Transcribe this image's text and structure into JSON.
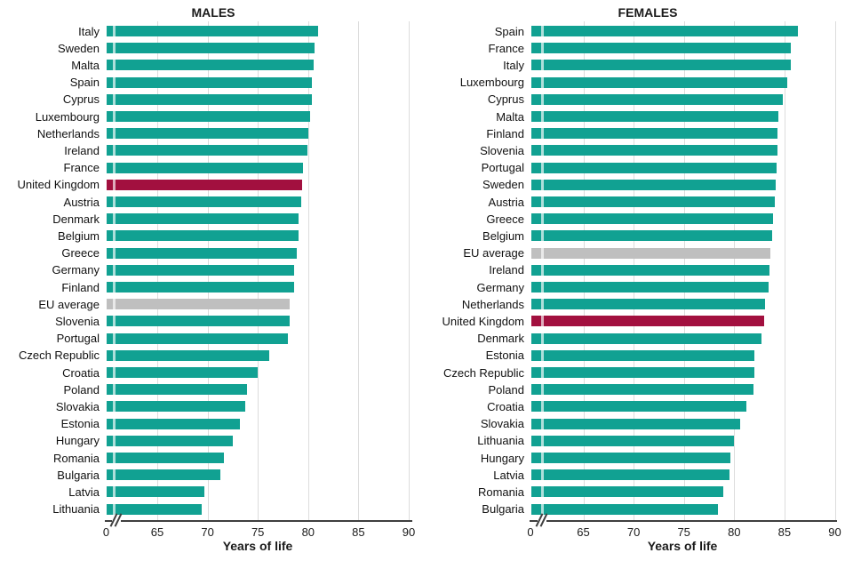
{
  "colors": {
    "bar": "#11A192",
    "highlight": "#A2103F",
    "average": "#BFBFBF",
    "gridline": "#DCDCDC",
    "axis": "#3F3F3F",
    "text": "#1A1A1A"
  },
  "chart_data": [
    {
      "type": "bar",
      "orientation": "horizontal",
      "title": "MALES",
      "xlabel": "Years of life",
      "x_ticks": [
        "0",
        "65",
        "70",
        "75",
        "80",
        "85",
        "90"
      ],
      "axis_break_after_zero": true,
      "xlim": [
        65,
        90
      ],
      "grid": true,
      "legend": "none",
      "highlight_category": "United Kingdom",
      "average_category": "EU average",
      "categories": [
        "Italy",
        "Sweden",
        "Malta",
        "Spain",
        "Cyprus",
        "Luxembourg",
        "Netherlands",
        "Ireland",
        "France",
        "United Kingdom",
        "Austria",
        "Denmark",
        "Belgium",
        "Greece",
        "Germany",
        "Finland",
        "EU average",
        "Slovenia",
        "Portugal",
        "Czech Republic",
        "Croatia",
        "Poland",
        "Slovakia",
        "Estonia",
        "Hungary",
        "Romania",
        "Bulgaria",
        "Latvia",
        "Lithuania"
      ],
      "values": [
        81.0,
        80.6,
        80.5,
        80.4,
        80.4,
        80.2,
        80.0,
        79.9,
        79.5,
        79.4,
        79.3,
        79.0,
        79.0,
        78.9,
        78.6,
        78.6,
        78.2,
        78.2,
        78.0,
        76.1,
        75.0,
        73.9,
        73.7,
        73.2,
        72.5,
        71.6,
        71.3,
        69.7,
        69.4
      ]
    },
    {
      "type": "bar",
      "orientation": "horizontal",
      "title": "FEMALES",
      "xlabel": "Years of life",
      "x_ticks": [
        "0",
        "65",
        "70",
        "75",
        "80",
        "85",
        "90"
      ],
      "axis_break_after_zero": true,
      "xlim": [
        65,
        90
      ],
      "grid": true,
      "legend": "none",
      "highlight_category": "United Kingdom",
      "average_category": "EU average",
      "categories": [
        "Spain",
        "France",
        "Italy",
        "Luxembourg",
        "Cyprus",
        "Malta",
        "Finland",
        "Slovenia",
        "Portugal",
        "Sweden",
        "Austria",
        "Greece",
        "Belgium",
        "EU average",
        "Ireland",
        "Germany",
        "Netherlands",
        "United Kingdom",
        "Denmark",
        "Estonia",
        "Czech Republic",
        "Poland",
        "Croatia",
        "Slovakia",
        "Lithuania",
        "Hungary",
        "Latvia",
        "Romania",
        "Bulgaria"
      ],
      "values": [
        86.3,
        85.6,
        85.6,
        85.3,
        84.8,
        84.4,
        84.3,
        84.3,
        84.2,
        84.1,
        84.0,
        83.9,
        83.8,
        83.6,
        83.5,
        83.4,
        83.1,
        83.0,
        82.7,
        82.0,
        82.0,
        81.9,
        81.2,
        80.6,
        80.0,
        79.6,
        79.5,
        78.9,
        78.4
      ]
    }
  ]
}
